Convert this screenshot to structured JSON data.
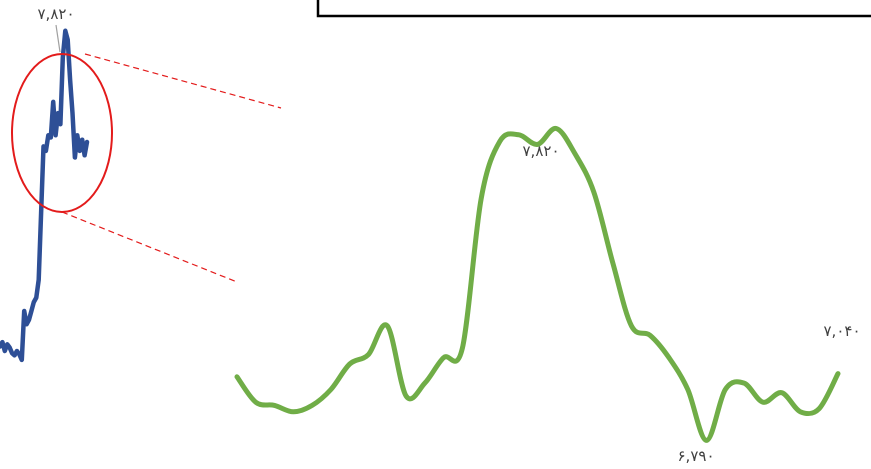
{
  "colors": {
    "main_series": "#2e4f96",
    "zoom_series": "#70ad47",
    "highlight": "#e31b1b",
    "box": "#000000",
    "label": "#404040"
  },
  "chart_data": [
    {
      "type": "line",
      "title": "",
      "xlabel": "",
      "ylabel": "",
      "grid": false,
      "legend": "none",
      "ylim": [
        6200,
        7900
      ],
      "series": [
        {
          "values": [
            6400,
            6420,
            6380,
            6410,
            6395,
            6370,
            6360,
            6380,
            6365,
            6340,
            6560,
            6500,
            6520,
            6560,
            6600,
            6620,
            6700,
            7000,
            7300,
            7280,
            7350,
            7340,
            7500,
            7350,
            7450,
            7400,
            7700,
            7820,
            7780,
            7600,
            7450,
            7250,
            7350,
            7280,
            7330,
            7260,
            7320
          ]
        }
      ],
      "annotations": [
        {
          "label": "۷,۸۲۰"
        }
      ]
    },
    {
      "type": "line",
      "title": "",
      "xlabel": "",
      "ylabel": "",
      "grid": false,
      "legend": "none",
      "ylim": [
        6700,
        7900
      ],
      "series": [
        {
          "values": [
            7040,
            6960,
            6950,
            6930,
            6950,
            7000,
            7080,
            7110,
            7200,
            6980,
            7020,
            7100,
            7130,
            7600,
            7780,
            7800,
            7770,
            7820,
            7740,
            7620,
            7400,
            7200,
            7170,
            7100,
            7000,
            6840,
            7000,
            7020,
            6960,
            6990,
            6930,
            6940,
            7050
          ]
        }
      ],
      "annotations": [
        {
          "label": "۷,۸۲۰"
        },
        {
          "label": "۶,۷۹۰"
        },
        {
          "label": "۷,۰۴۰"
        }
      ]
    }
  ]
}
